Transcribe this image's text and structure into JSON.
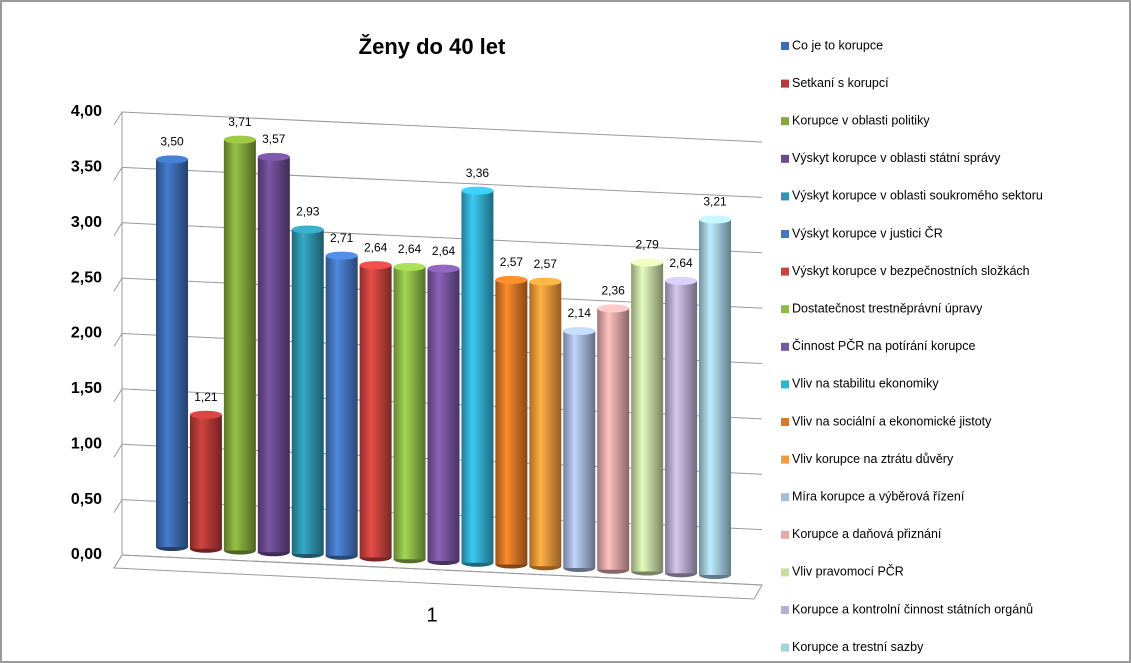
{
  "chart_data": {
    "type": "bar",
    "title": "Ženy do 40 let",
    "categories": [
      "1"
    ],
    "ylim": [
      0,
      4
    ],
    "yticks": [
      {
        "value": 0,
        "label": "0,00"
      },
      {
        "value": 0.5,
        "label": "0,50"
      },
      {
        "value": 1,
        "label": "1,00"
      },
      {
        "value": 1.5,
        "label": "1,50"
      },
      {
        "value": 2,
        "label": "2,00"
      },
      {
        "value": 2.5,
        "label": "2,50"
      },
      {
        "value": 3,
        "label": "3,00"
      },
      {
        "value": 3.5,
        "label": "3,50"
      },
      {
        "value": 4,
        "label": "4,00"
      }
    ],
    "grid": true,
    "legend": "right",
    "series": [
      {
        "name": "Co je to korupce",
        "color": "#3c6cb4",
        "values": [
          3.5
        ],
        "value_labels": [
          "3,50"
        ]
      },
      {
        "name": "Setkaní s korupcí",
        "color": "#b73b38",
        "values": [
          1.21
        ],
        "value_labels": [
          "1,21"
        ]
      },
      {
        "name": "Korupce v oblasti politiky",
        "color": "#84a83c",
        "values": [
          3.71
        ],
        "value_labels": [
          "3,71"
        ]
      },
      {
        "name": "Výskyt  korupce v oblasti státní správy",
        "color": "#6b4a8f",
        "values": [
          3.57
        ],
        "value_labels": [
          "3,57"
        ]
      },
      {
        "name": "Výskyt korupce v oblasti soukromého sektoru",
        "color": "#2f94ac",
        "values": [
          2.93
        ],
        "value_labels": [
          "2,93"
        ]
      },
      {
        "name": "Výskyt  korupce v justici ČR",
        "color": "#4577c1",
        "values": [
          2.71
        ],
        "value_labels": [
          "2,71"
        ]
      },
      {
        "name": "Výskyt  korupce v bezpečnostních složkách",
        "color": "#c9433f",
        "values": [
          2.64
        ],
        "value_labels": [
          "2,64"
        ]
      },
      {
        "name": "Dostatečnost trestněprávní úpravy",
        "color": "#8fbb49",
        "values": [
          2.64
        ],
        "value_labels": [
          "2,64"
        ]
      },
      {
        "name": "Činnost PČR na potírání korupce",
        "color": "#7a55a1",
        "values": [
          2.64
        ],
        "value_labels": [
          "2,64"
        ]
      },
      {
        "name": "Vliv na stabilitu ekonomiky",
        "color": "#33b0d2",
        "values": [
          3.36
        ],
        "value_labels": [
          "3,36"
        ]
      },
      {
        "name": "Vliv na sociální a ekonomické jistoty",
        "color": "#dc7828",
        "values": [
          2.57
        ],
        "value_labels": [
          "2,57"
        ]
      },
      {
        "name": "Vliv korupce na ztrátu důvěry",
        "color": "#f7993a",
        "values": [
          2.57
        ],
        "value_labels": [
          "2,57"
        ]
      },
      {
        "name": "Míra korupce a výběrová řízení",
        "color": "#a7b8dc",
        "values": [
          2.14
        ],
        "value_labels": [
          "2,14"
        ]
      },
      {
        "name": "Korupce a daňová přiznání",
        "color": "#e4a8a8",
        "values": [
          2.36
        ],
        "value_labels": [
          "2,36"
        ]
      },
      {
        "name": "Vliv pravomocí PČR",
        "color": "#c8dba5",
        "values": [
          2.79
        ],
        "value_labels": [
          "2,79"
        ]
      },
      {
        "name": "Korupce a kontrolní činnost státních orgánů",
        "color": "#b8aed1",
        "values": [
          2.64
        ],
        "value_labels": [
          "2,64"
        ]
      },
      {
        "name": "Korupce a trestní sazby",
        "color": "#a5cfe3",
        "values": [
          3.21
        ],
        "value_labels": [
          "3,21"
        ]
      }
    ]
  }
}
